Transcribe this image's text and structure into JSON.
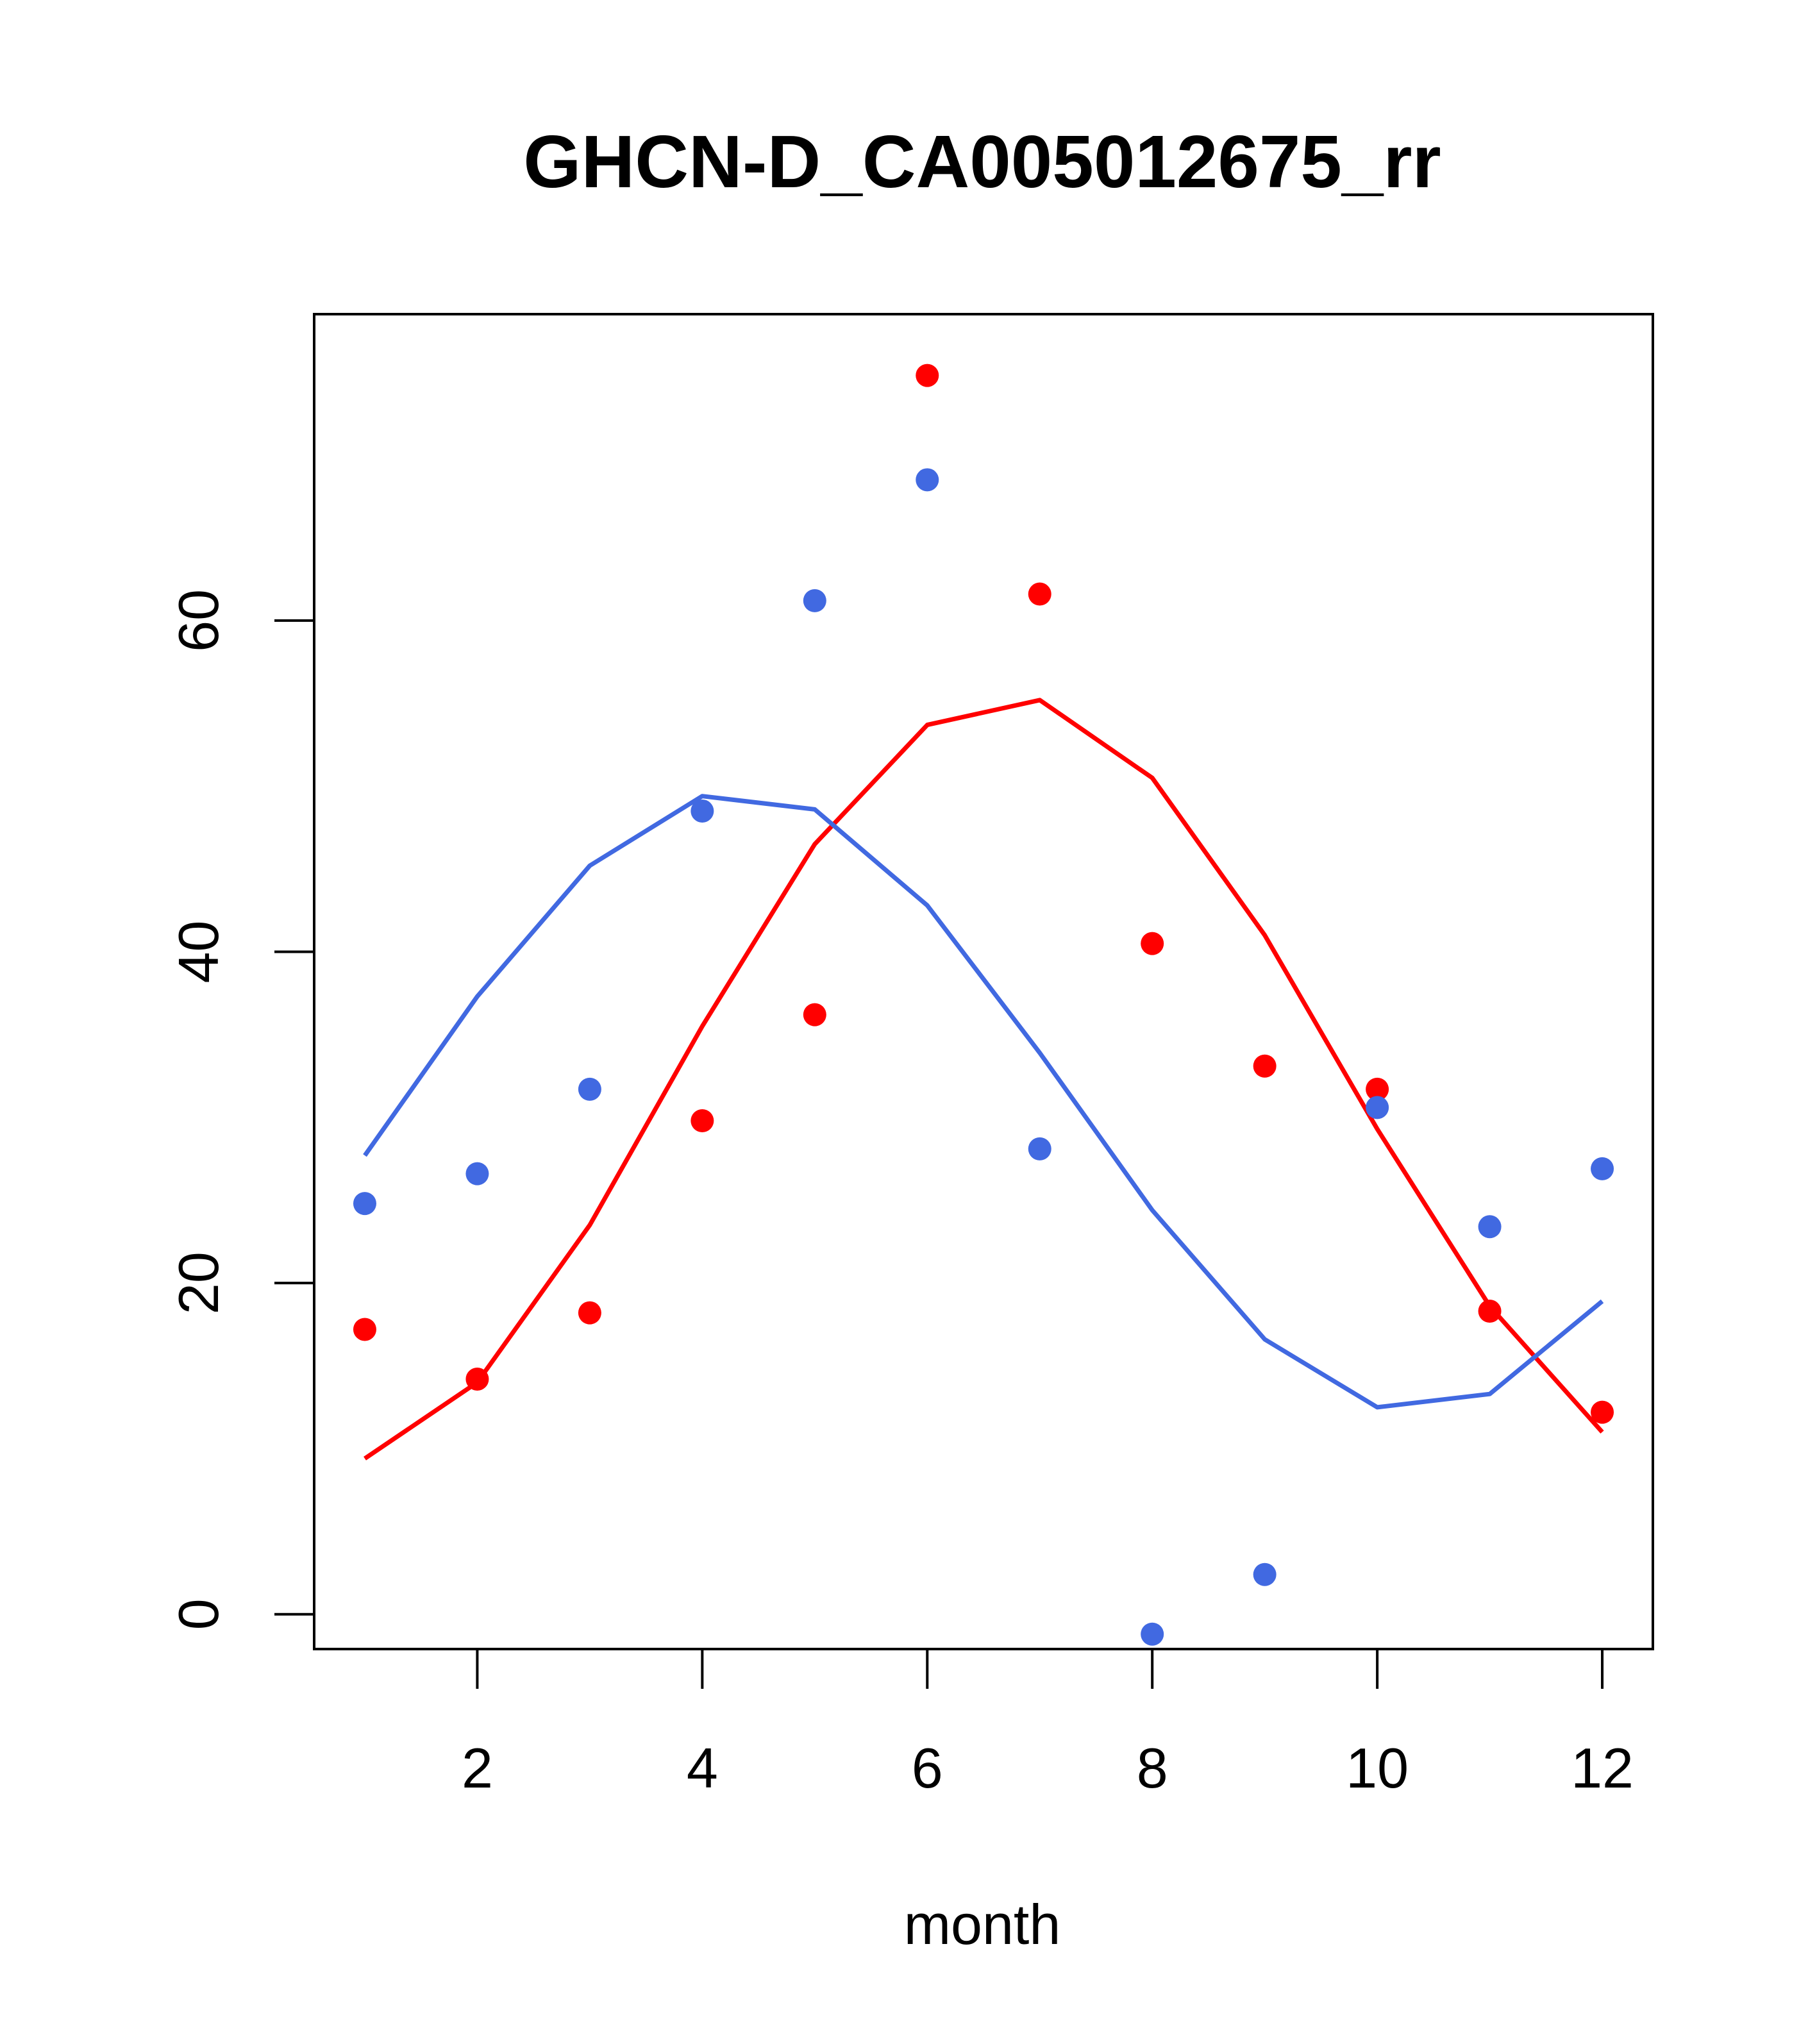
{
  "chart_data": {
    "type": "scatter",
    "title": "GHCN-D_CA005012675_rr",
    "xlabel": "month",
    "ylabel": "",
    "xlim": [
      0.55,
      12.45
    ],
    "ylim": [
      -2.1,
      78.5
    ],
    "xticks": [
      2,
      4,
      6,
      8,
      10,
      12
    ],
    "yticks": [
      0,
      20,
      40,
      60
    ],
    "grid": false,
    "x": [
      1,
      2,
      3,
      4,
      5,
      6,
      7,
      8,
      9,
      10,
      11,
      12
    ],
    "series": [
      {
        "color": "#ff0000",
        "points": [
          17.2,
          14.2,
          18.2,
          29.8,
          36.2,
          74.8,
          61.6,
          40.5,
          33.1,
          31.7,
          18.3,
          12.2
        ],
        "line": [
          9.4,
          14.0,
          23.5,
          35.5,
          46.5,
          53.7,
          55.2,
          50.5,
          41.0,
          29.3,
          18.6,
          11.0
        ]
      },
      {
        "color": "#4169e1",
        "points": [
          24.8,
          26.6,
          31.7,
          48.5,
          61.2,
          68.5,
          28.1,
          -1.2,
          2.4,
          30.6,
          23.4,
          26.9
        ],
        "line": [
          27.7,
          37.3,
          45.2,
          49.4,
          48.6,
          42.8,
          33.9,
          24.4,
          16.6,
          12.5,
          13.3,
          18.9
        ]
      }
    ]
  }
}
